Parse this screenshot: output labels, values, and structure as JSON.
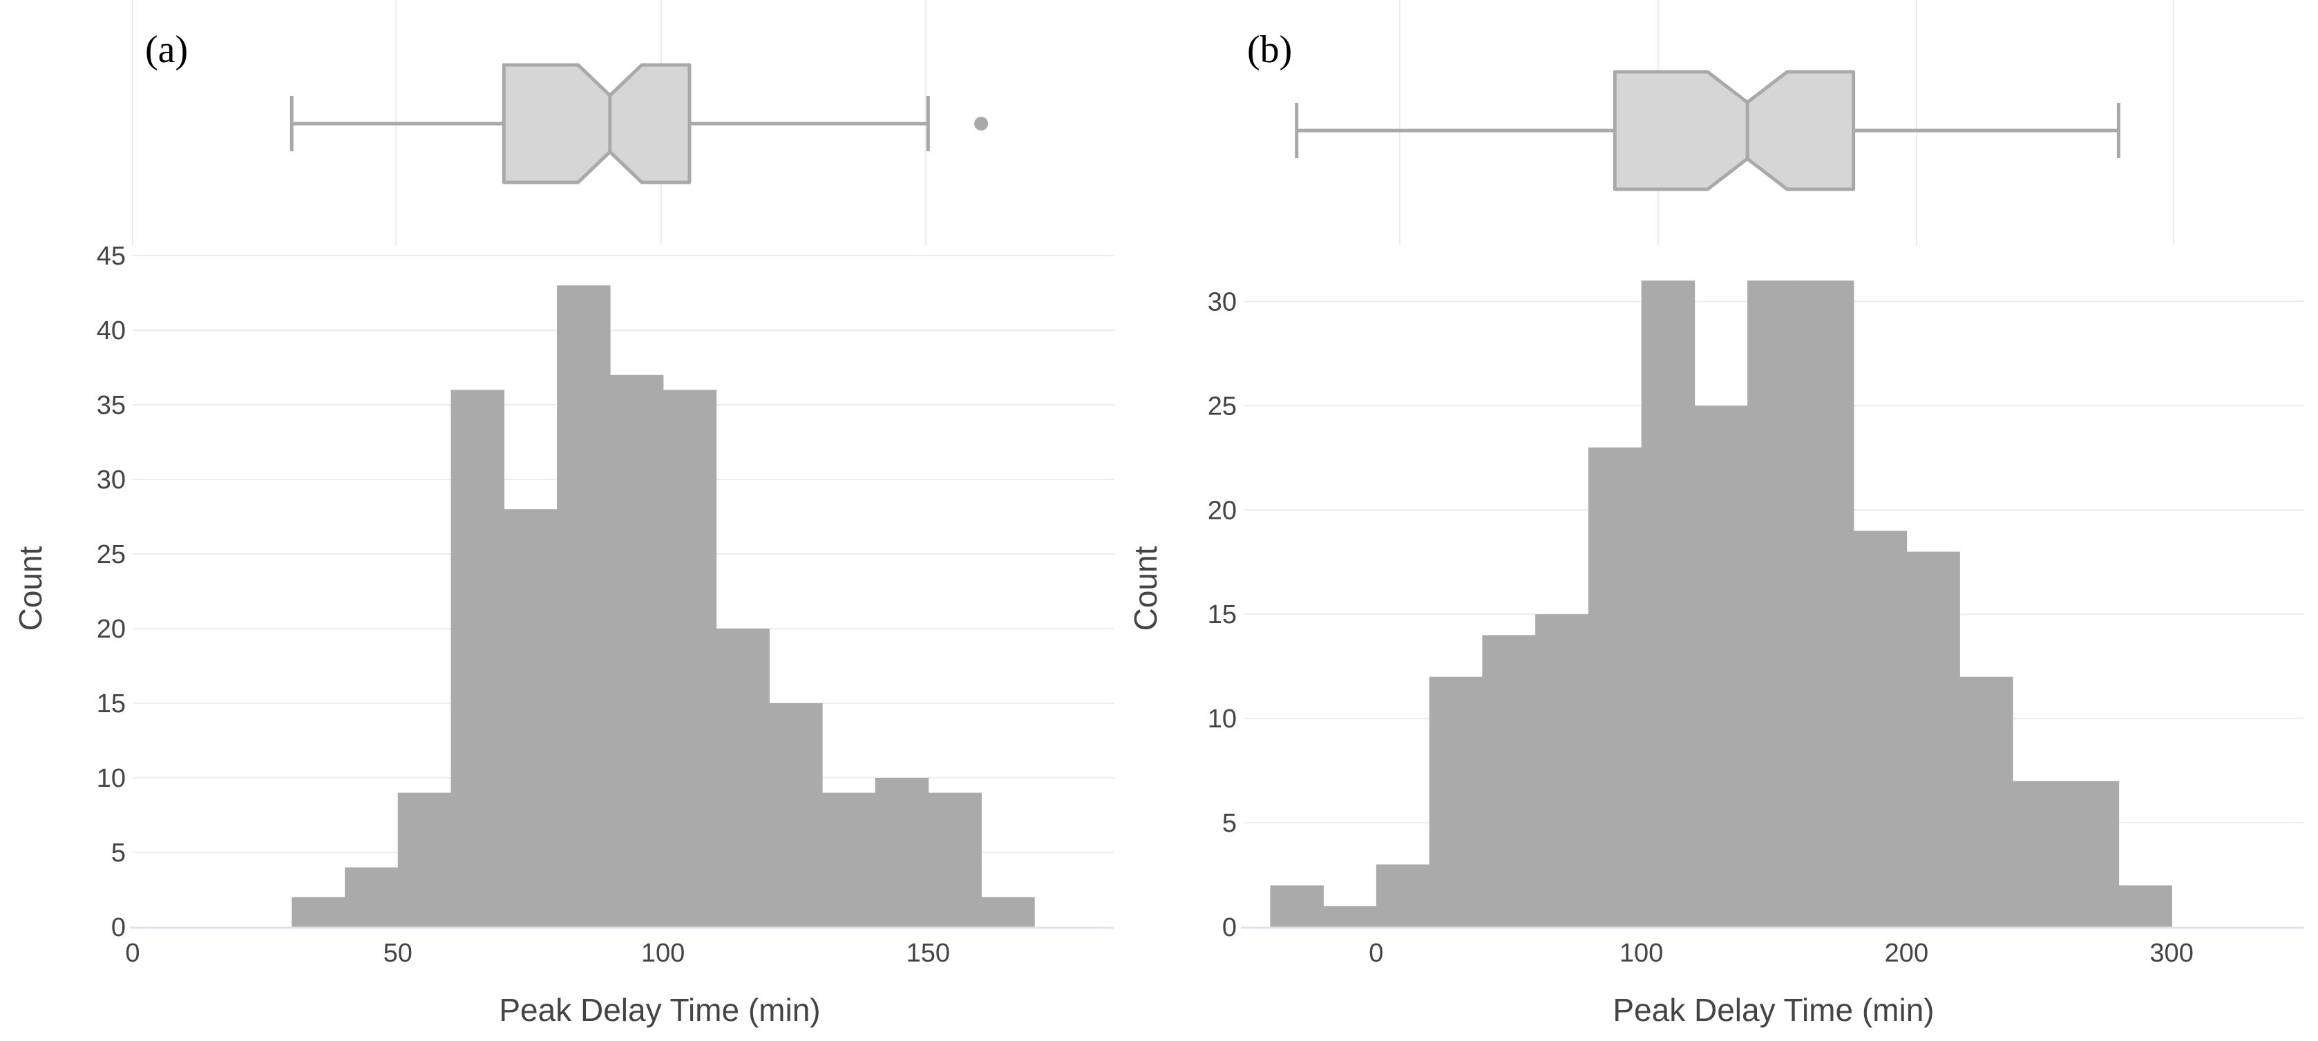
{
  "colors": {
    "bar": "#aaaaaa",
    "box_fill": "#d6d6d6",
    "box_stroke": "#a9a9a9",
    "grid": "#e8edf5",
    "axis_line": "#dbe3f1",
    "text": "#444444"
  },
  "chart_data": [
    {
      "panel": "(a)",
      "type": "bar",
      "title": "",
      "xlabel": "Peak Delay Time (min)",
      "ylabel": "Count",
      "xlim": [
        0,
        185
      ],
      "ylim": [
        0,
        45
      ],
      "xticks": [
        0,
        50,
        100,
        150
      ],
      "yticks": [
        0,
        5,
        10,
        15,
        20,
        25,
        30,
        35,
        40,
        45
      ],
      "bin_width": 10,
      "bin_starts": [
        30,
        40,
        50,
        60,
        70,
        80,
        90,
        100,
        110,
        120,
        130,
        140,
        150,
        160
      ],
      "values": [
        2,
        4,
        9,
        36,
        28,
        43,
        37,
        36,
        20,
        15,
        9,
        10,
        9,
        2
      ],
      "boxplot": {
        "min": 30,
        "q1": 70,
        "median": 90,
        "q3": 105,
        "max": 150,
        "notch_low": 84,
        "notch_high": 96,
        "outliers": [
          160
        ]
      }
    },
    {
      "panel": "(b)",
      "type": "bar",
      "title": "",
      "xlabel": "Peak Delay Time (min)",
      "ylabel": "Count",
      "xlim": [
        -50,
        350
      ],
      "ylim": [
        0,
        32
      ],
      "xticks": [
        0,
        100,
        200,
        300
      ],
      "yticks": [
        0,
        5,
        10,
        15,
        20,
        25,
        30
      ],
      "bin_width": 20,
      "bin_starts": [
        -40,
        -20,
        0,
        20,
        40,
        60,
        80,
        100,
        120,
        140,
        160,
        180,
        200,
        220,
        240,
        260,
        280
      ],
      "values": [
        2,
        1,
        3,
        12,
        14,
        15,
        23,
        31,
        25,
        31,
        31,
        19,
        18,
        12,
        7,
        7,
        2
      ],
      "boxplot": {
        "min": -30,
        "q1": 90,
        "median": 140,
        "q3": 180,
        "max": 280,
        "notch_low": 125,
        "notch_high": 155,
        "outliers": []
      }
    }
  ]
}
